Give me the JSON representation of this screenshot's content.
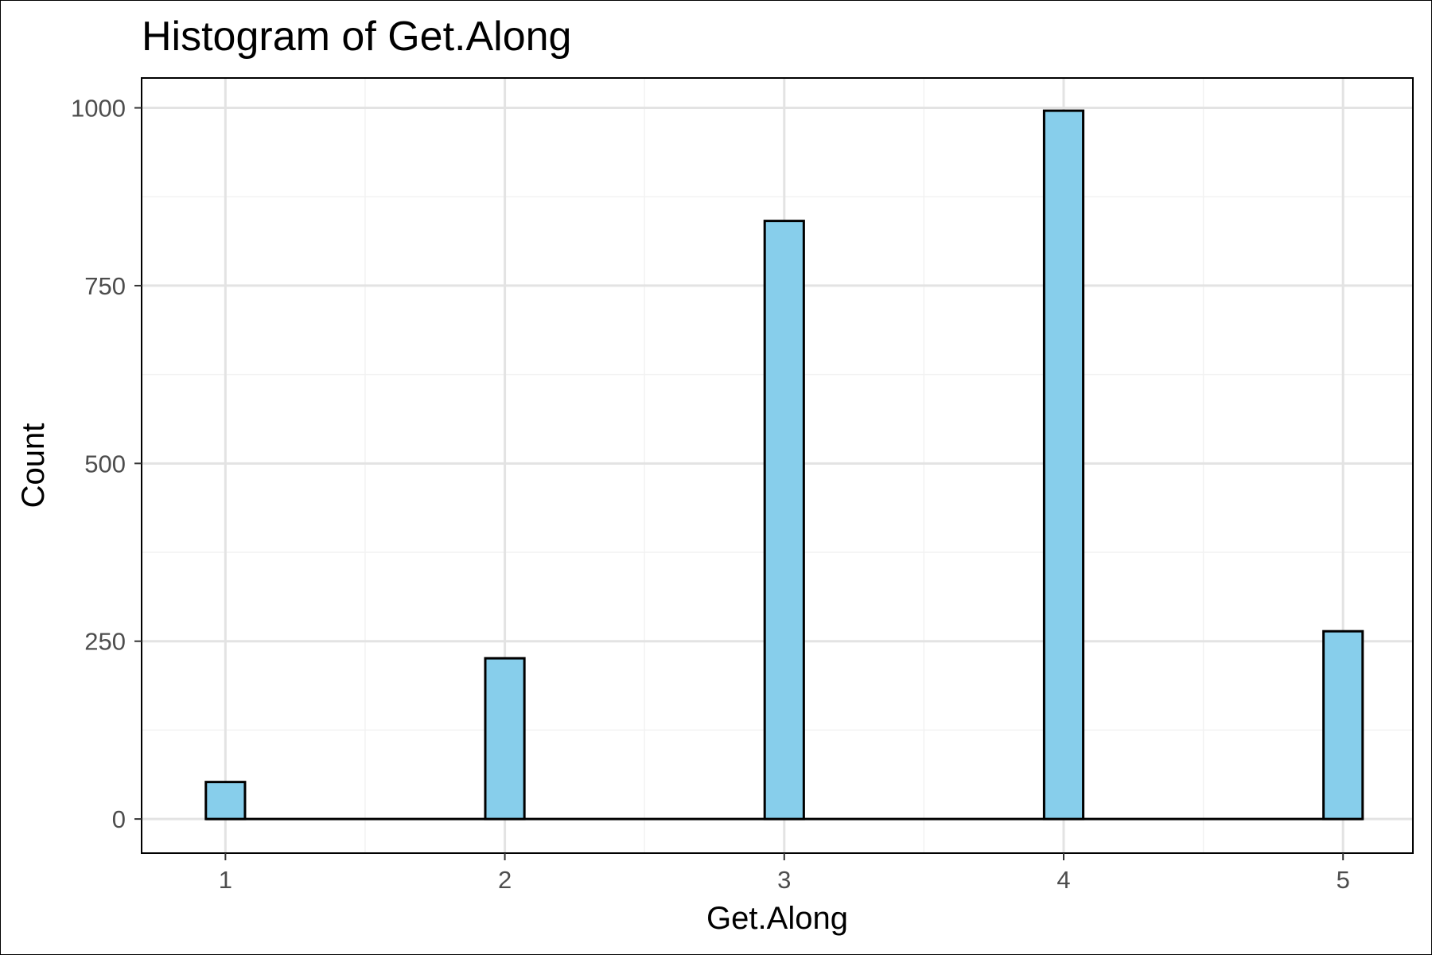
{
  "chart_data": {
    "type": "bar",
    "title": "Histogram of Get.Along",
    "xlabel": "Get.Along",
    "ylabel": "Count",
    "categories": [
      "1",
      "2",
      "3",
      "4",
      "5"
    ],
    "x": [
      1,
      2,
      3,
      4,
      5
    ],
    "values": [
      52,
      226,
      841,
      996,
      264
    ],
    "xlim": [
      0.7,
      5.25
    ],
    "ylim": [
      -48,
      1042
    ],
    "x_ticks": [
      1,
      2,
      3,
      4,
      5
    ],
    "x_tick_labels": [
      "1",
      "2",
      "3",
      "4",
      "5"
    ],
    "y_ticks": [
      0,
      250,
      500,
      750,
      1000
    ],
    "y_tick_labels": [
      "0",
      "250",
      "500",
      "750",
      "1000"
    ],
    "bin_width": 0.14,
    "grid": true,
    "legend": "none",
    "colors": {
      "bar_fill": "#87CEEB",
      "bar_stroke": "#000000",
      "grid_major": "#e3e3e3",
      "grid_minor": "#f2f2f2",
      "panel_border": "#000000",
      "tick_text": "#4d4d4d"
    }
  }
}
